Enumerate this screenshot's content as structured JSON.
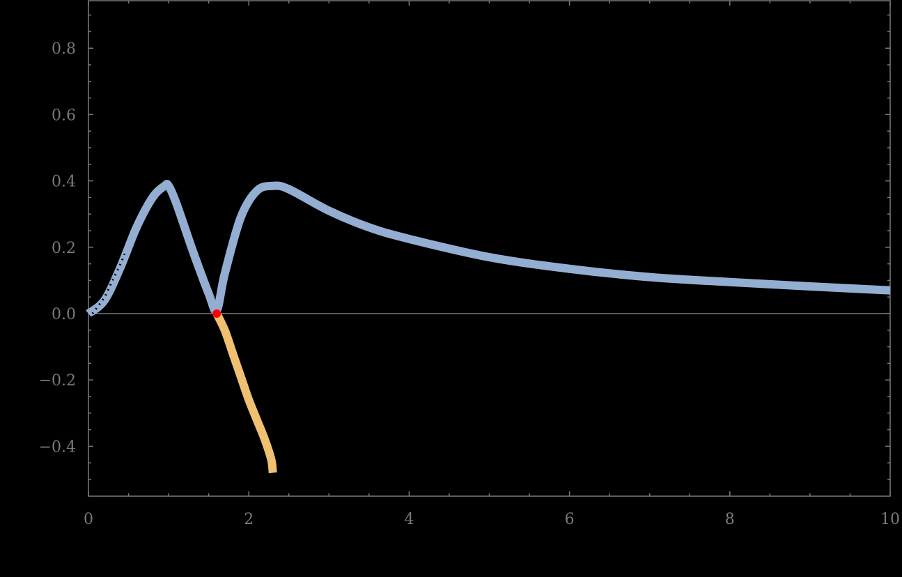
{
  "chart_data": {
    "type": "line",
    "title": "",
    "xlabel": "",
    "ylabel": "",
    "xlim": [
      0,
      10
    ],
    "ylim": [
      -0.545,
      0.945
    ],
    "grid": false,
    "legend": null,
    "x_ticks": [
      0,
      2,
      4,
      6,
      8,
      10
    ],
    "x_tick_labels": [
      "0",
      "2",
      "4",
      "6",
      "8",
      "10"
    ],
    "y_ticks": [
      -0.4,
      -0.2,
      0.0,
      0.2,
      0.4,
      0.6,
      0.8
    ],
    "y_tick_labels": [
      "−0.4",
      "−0.2",
      "0.0",
      "0.2",
      "0.4",
      "0.6",
      "0.8"
    ],
    "series": [
      {
        "name": "blue-curve",
        "color": "#94aed2",
        "x": [
          0,
          0.2,
          0.4,
          0.6,
          0.8,
          0.95,
          1.0,
          1.1,
          1.3,
          1.5,
          1.6,
          1.7,
          1.9,
          2.1,
          2.3,
          2.5,
          3.0,
          3.5,
          4.0,
          5.0,
          6.0,
          7.0,
          8.0,
          9.0,
          10.0
        ],
        "values": [
          0.0,
          0.04,
          0.14,
          0.26,
          0.35,
          0.385,
          0.385,
          0.33,
          0.19,
          0.06,
          0.01,
          0.12,
          0.29,
          0.37,
          0.385,
          0.375,
          0.31,
          0.26,
          0.225,
          0.17,
          0.135,
          0.11,
          0.095,
          0.082,
          0.07
        ]
      },
      {
        "name": "orange-curve",
        "color": "#efc070",
        "x": [
          1.6,
          1.7,
          1.8,
          1.9,
          2.0,
          2.1,
          2.2,
          2.28,
          2.3
        ],
        "values": [
          0.0,
          -0.05,
          -0.12,
          -0.19,
          -0.26,
          -0.32,
          -0.38,
          -0.44,
          -0.48
        ]
      },
      {
        "name": "dotted-curve",
        "color": "#000000",
        "x": [
          0.05,
          0.2,
          0.3,
          0.4,
          0.45
        ],
        "values": [
          0.0,
          0.05,
          0.1,
          0.15,
          0.18
        ]
      }
    ],
    "annotations": [
      {
        "type": "point",
        "x": 1.6,
        "y": 0.0,
        "color": "#ff0000"
      }
    ]
  }
}
